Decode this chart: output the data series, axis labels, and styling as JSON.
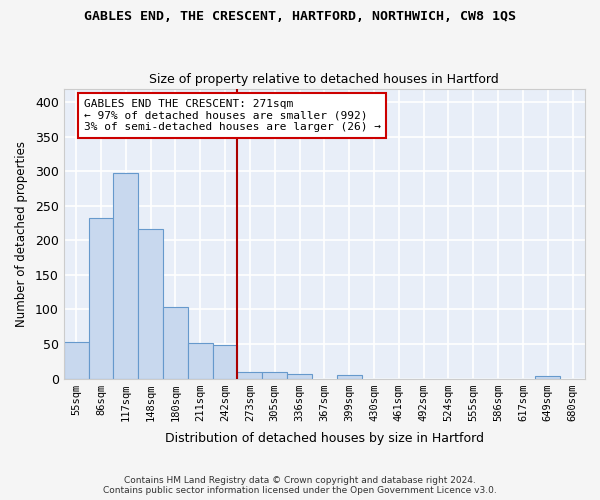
{
  "title": "GABLES END, THE CRESCENT, HARTFORD, NORTHWICH, CW8 1QS",
  "subtitle": "Size of property relative to detached houses in Hartford",
  "xlabel": "Distribution of detached houses by size in Hartford",
  "ylabel": "Number of detached properties",
  "bin_labels": [
    "55sqm",
    "86sqm",
    "117sqm",
    "148sqm",
    "180sqm",
    "211sqm",
    "242sqm",
    "273sqm",
    "305sqm",
    "336sqm",
    "367sqm",
    "399sqm",
    "430sqm",
    "461sqm",
    "492sqm",
    "524sqm",
    "555sqm",
    "586sqm",
    "617sqm",
    "649sqm",
    "680sqm"
  ],
  "bar_values": [
    53,
    233,
    298,
    216,
    103,
    52,
    49,
    10,
    9,
    6,
    0,
    5,
    0,
    0,
    0,
    0,
    0,
    0,
    0,
    3,
    0
  ],
  "property_line_bin": 7,
  "annotation_line1": "GABLES END THE CRESCENT: 271sqm",
  "annotation_line2": "← 97% of detached houses are smaller (992)",
  "annotation_line3": "3% of semi-detached houses are larger (26) →",
  "bar_color": "#c8d8ee",
  "bar_edge_color": "#6699cc",
  "line_color": "#aa0000",
  "annotation_box_color": "#ffffff",
  "annotation_box_edge": "#cc0000",
  "background_color": "#e8eef8",
  "grid_color": "#ffffff",
  "fig_background": "#f5f5f5",
  "ylim": [
    0,
    420
  ],
  "yticks": [
    0,
    50,
    100,
    150,
    200,
    250,
    300,
    350,
    400
  ],
  "footer_line1": "Contains HM Land Registry data © Crown copyright and database right 2024.",
  "footer_line2": "Contains public sector information licensed under the Open Government Licence v3.0."
}
